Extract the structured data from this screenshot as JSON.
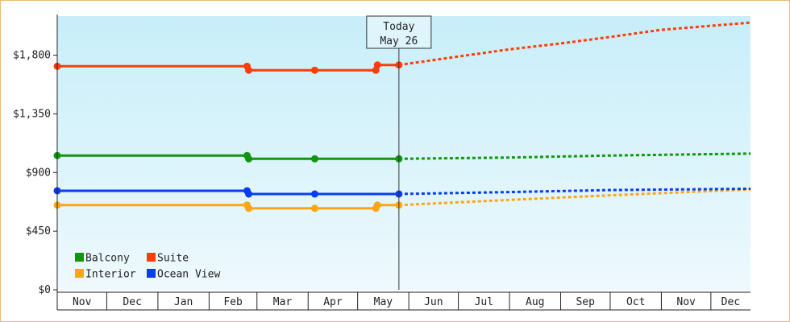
{
  "chart_data": {
    "type": "line",
    "title": "",
    "xlabel": "",
    "ylabel": "",
    "ylim": [
      0,
      2100
    ],
    "yticks": [
      {
        "value": 0,
        "label": "$0"
      },
      {
        "value": 450,
        "label": "$450"
      },
      {
        "value": 900,
        "label": "$900"
      },
      {
        "value": 1350,
        "label": "$1,350"
      },
      {
        "value": 1800,
        "label": "$1,800"
      }
    ],
    "months": [
      "Nov",
      "Dec",
      "Jan",
      "Feb",
      "Mar",
      "Apr",
      "May",
      "Jun",
      "Jul",
      "Aug",
      "Sep",
      "Oct",
      "Nov",
      "Dec"
    ],
    "x_range": [
      "2023-11-01",
      "2024-12-25"
    ],
    "today": {
      "date": "2024-05-26",
      "line1": "Today",
      "line2": "May 26"
    },
    "legend_position": "bottom-left",
    "grid": false,
    "series": [
      {
        "name": "Balcony",
        "color": "#129612",
        "history": [
          [
            "2023-11-01",
            1030
          ],
          [
            "2024-02-24",
            1030
          ],
          [
            "2024-02-25",
            1005
          ],
          [
            "2024-04-05",
            1005
          ],
          [
            "2024-05-26",
            1005
          ]
        ],
        "markers": [
          "2023-11-01",
          "2024-02-24",
          "2024-02-25",
          "2024-04-05",
          "2024-05-26"
        ],
        "forecast": [
          [
            "2024-05-26",
            1005
          ],
          [
            "2024-08-01",
            1015
          ],
          [
            "2024-10-01",
            1030
          ],
          [
            "2024-12-25",
            1045
          ]
        ]
      },
      {
        "name": "Suite",
        "color": "#ff3c0a",
        "history": [
          [
            "2023-11-01",
            1715
          ],
          [
            "2024-02-24",
            1715
          ],
          [
            "2024-02-25",
            1685
          ],
          [
            "2024-04-05",
            1685
          ],
          [
            "2024-05-12",
            1685
          ],
          [
            "2024-05-13",
            1725
          ],
          [
            "2024-05-26",
            1725
          ]
        ],
        "markers": [
          "2023-11-01",
          "2024-02-24",
          "2024-02-25",
          "2024-04-05",
          "2024-05-12",
          "2024-05-13",
          "2024-05-26"
        ],
        "forecast": [
          [
            "2024-05-26",
            1725
          ],
          [
            "2024-07-01",
            1790
          ],
          [
            "2024-08-01",
            1845
          ],
          [
            "2024-09-01",
            1890
          ],
          [
            "2024-10-01",
            1940
          ],
          [
            "2024-11-01",
            1995
          ],
          [
            "2024-12-25",
            2050
          ]
        ]
      },
      {
        "name": "Interior",
        "color": "#ffa514",
        "history": [
          [
            "2023-11-01",
            650
          ],
          [
            "2024-02-24",
            650
          ],
          [
            "2024-02-25",
            625
          ],
          [
            "2024-04-05",
            625
          ],
          [
            "2024-05-12",
            625
          ],
          [
            "2024-05-13",
            650
          ],
          [
            "2024-05-26",
            650
          ]
        ],
        "markers": [
          "2023-11-01",
          "2024-02-24",
          "2024-02-25",
          "2024-04-05",
          "2024-05-12",
          "2024-05-13",
          "2024-05-26"
        ],
        "forecast": [
          [
            "2024-05-26",
            650
          ],
          [
            "2024-08-01",
            690
          ],
          [
            "2024-10-01",
            725
          ],
          [
            "2024-12-25",
            770
          ]
        ]
      },
      {
        "name": "Ocean View",
        "color": "#0a3cf0",
        "history": [
          [
            "2023-11-01",
            760
          ],
          [
            "2024-02-24",
            760
          ],
          [
            "2024-02-25",
            735
          ],
          [
            "2024-04-05",
            735
          ],
          [
            "2024-05-26",
            735
          ]
        ],
        "markers": [
          "2023-11-01",
          "2024-02-24",
          "2024-02-25",
          "2024-04-05",
          "2024-05-26"
        ],
        "forecast": [
          [
            "2024-05-26",
            735
          ],
          [
            "2024-08-01",
            750
          ],
          [
            "2024-10-01",
            765
          ],
          [
            "2024-12-25",
            775
          ]
        ]
      }
    ]
  }
}
